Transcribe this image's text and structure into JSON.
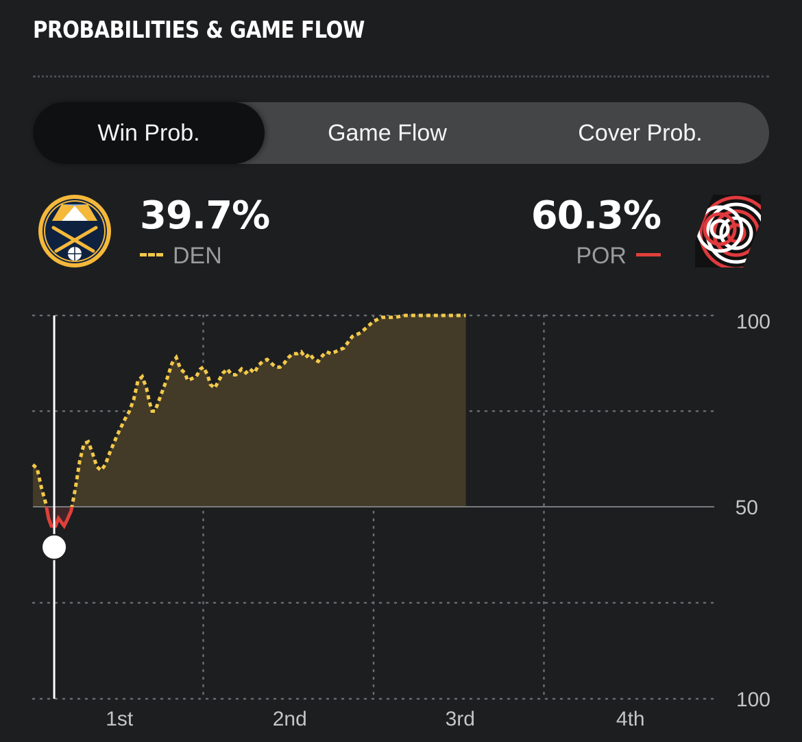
{
  "header": {
    "title": "PROBABILITIES & GAME FLOW"
  },
  "tabs": [
    {
      "label": "Win Prob.",
      "active": true
    },
    {
      "label": "Game Flow",
      "active": false
    },
    {
      "label": "Cover Prob.",
      "active": false
    }
  ],
  "teams": {
    "den": {
      "abbr": "DEN",
      "prob": "39.7%",
      "color": "#f2c94a",
      "logo": "nuggets-logo"
    },
    "por": {
      "abbr": "POR",
      "prob": "60.3%",
      "color": "#e0403a",
      "logo": "trail-blazers-logo"
    }
  },
  "chart_data": {
    "type": "area",
    "ytick_labels": [
      "100",
      "50",
      "100"
    ],
    "quarters": [
      "1st",
      "2nd",
      "3rd",
      "4th"
    ],
    "x_range": [
      0,
      48
    ],
    "y_range": [
      -100,
      100
    ],
    "y_meaning": "win probability margin toward DEN (above 50) or POR (below 50)",
    "series": [
      {
        "values": [
          [
            0.0,
            22
          ],
          [
            0.3,
            20
          ],
          [
            0.6,
            10
          ],
          [
            0.9,
            2
          ],
          [
            1.1,
            -6
          ],
          [
            1.3,
            -10
          ],
          [
            1.6,
            -10
          ],
          [
            1.8,
            -6
          ],
          [
            2.0,
            -8
          ],
          [
            2.2,
            -10
          ],
          [
            2.4,
            -7
          ],
          [
            2.7,
            -2
          ],
          [
            3.0,
            10
          ],
          [
            3.3,
            24
          ],
          [
            3.6,
            33
          ],
          [
            3.9,
            34
          ],
          [
            4.2,
            28
          ],
          [
            4.5,
            21
          ],
          [
            4.8,
            19
          ],
          [
            5.1,
            22
          ],
          [
            5.4,
            28
          ],
          [
            5.8,
            35
          ],
          [
            6.1,
            40
          ],
          [
            6.5,
            46
          ],
          [
            6.8,
            50
          ],
          [
            7.1,
            56
          ],
          [
            7.4,
            66
          ],
          [
            7.7,
            68
          ],
          [
            8.0,
            62
          ],
          [
            8.2,
            55
          ],
          [
            8.4,
            50
          ],
          [
            8.6,
            50
          ],
          [
            8.9,
            56
          ],
          [
            9.2,
            62
          ],
          [
            9.5,
            68
          ],
          [
            9.8,
            75
          ],
          [
            10.1,
            78
          ],
          [
            10.4,
            72
          ],
          [
            10.7,
            70
          ],
          [
            10.9,
            66
          ],
          [
            11.2,
            67
          ],
          [
            11.5,
            68
          ],
          [
            11.8,
            72
          ],
          [
            12.0,
            73
          ],
          [
            12.3,
            69
          ],
          [
            12.5,
            64
          ],
          [
            12.8,
            62
          ],
          [
            13.1,
            66
          ],
          [
            13.4,
            70
          ],
          [
            13.7,
            72
          ],
          [
            14.0,
            69
          ],
          [
            14.3,
            69
          ],
          [
            14.7,
            72
          ],
          [
            15.0,
            70
          ],
          [
            15.3,
            72
          ],
          [
            15.6,
            70
          ],
          [
            15.9,
            74
          ],
          [
            16.2,
            76
          ],
          [
            16.5,
            77
          ],
          [
            16.8,
            75
          ],
          [
            17.1,
            73
          ],
          [
            17.4,
            73
          ],
          [
            17.7,
            75
          ],
          [
            18.0,
            78
          ],
          [
            18.3,
            80
          ],
          [
            18.6,
            80
          ],
          [
            18.9,
            81
          ],
          [
            19.2,
            78
          ],
          [
            19.5,
            80
          ],
          [
            19.8,
            77
          ],
          [
            20.1,
            76
          ],
          [
            20.4,
            79
          ],
          [
            20.7,
            81
          ],
          [
            21.0,
            80
          ],
          [
            21.3,
            81
          ],
          [
            21.6,
            82
          ],
          [
            21.9,
            83
          ],
          [
            22.2,
            86
          ],
          [
            22.5,
            89
          ],
          [
            22.8,
            90
          ],
          [
            23.1,
            91
          ],
          [
            23.4,
            93
          ],
          [
            23.7,
            95
          ],
          [
            24.0,
            97
          ],
          [
            24.3,
            98
          ],
          [
            24.6,
            99
          ],
          [
            24.9,
            99
          ],
          [
            25.5,
            99
          ],
          [
            26.2,
            100
          ],
          [
            27.0,
            100
          ],
          [
            28.5,
            100
          ],
          [
            30.5,
            100
          ]
        ]
      }
    ],
    "current_marker": {
      "x": 1.5,
      "y": -21
    },
    "fill_above": "#433b27",
    "fill_below": "#3e2628"
  }
}
